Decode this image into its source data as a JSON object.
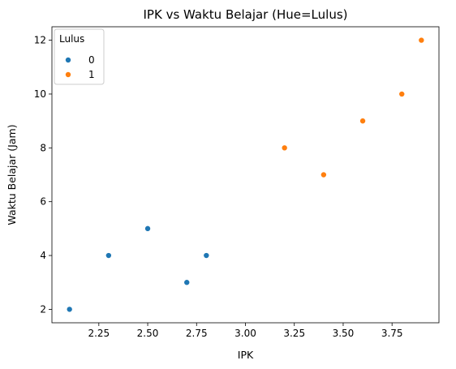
{
  "chart_data": {
    "type": "scatter",
    "title": "IPK vs Waktu Belajar (Hue=Lulus)",
    "xlabel": "IPK",
    "ylabel": "Waktu Belajar (Jam)",
    "xlim": [
      2.01,
      3.99
    ],
    "ylim": [
      1.5,
      12.5
    ],
    "xticks": [
      "2.25",
      "2.50",
      "2.75",
      "3.00",
      "3.25",
      "3.50",
      "3.75"
    ],
    "yticks": [
      "2",
      "4",
      "6",
      "8",
      "10",
      "12"
    ],
    "grid": false,
    "legend": {
      "title": "Lulus",
      "placement": "top-left"
    },
    "series": [
      {
        "name": "0",
        "color": "#1f77b4",
        "points": [
          {
            "x": 2.1,
            "y": 2
          },
          {
            "x": 2.3,
            "y": 4
          },
          {
            "x": 2.5,
            "y": 5
          },
          {
            "x": 2.7,
            "y": 3
          },
          {
            "x": 2.8,
            "y": 4
          }
        ]
      },
      {
        "name": "1",
        "color": "#ff7f0e",
        "points": [
          {
            "x": 3.2,
            "y": 8
          },
          {
            "x": 3.4,
            "y": 7
          },
          {
            "x": 3.6,
            "y": 9
          },
          {
            "x": 3.8,
            "y": 10
          },
          {
            "x": 3.9,
            "y": 12
          }
        ]
      }
    ]
  }
}
